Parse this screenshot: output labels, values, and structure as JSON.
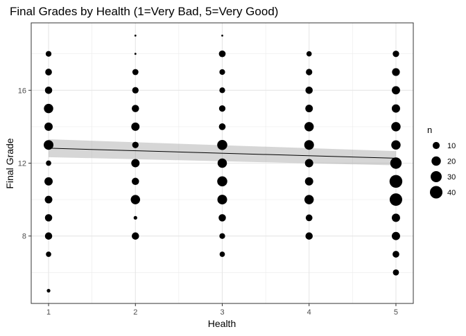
{
  "chart_data": {
    "type": "scatter",
    "title": "Final Grades by Health (1=Very Bad, 5=Very Good)",
    "xlabel": "Health",
    "ylabel": "Final Grade",
    "x_ticks": [
      1,
      2,
      3,
      4,
      5
    ],
    "y_ticks": [
      8,
      12,
      16
    ],
    "xlim": [
      0.8,
      5.2
    ],
    "ylim": [
      4.3,
      19.7
    ],
    "grid": true,
    "legend_position": "right",
    "legend": {
      "title": "n",
      "entries": [
        10,
        20,
        30,
        40
      ]
    },
    "size_range": [
      1,
      45
    ],
    "points": [
      {
        "x": 1,
        "y": 18,
        "n": 6
      },
      {
        "x": 1,
        "y": 17,
        "n": 9
      },
      {
        "x": 1,
        "y": 16,
        "n": 11
      },
      {
        "x": 1,
        "y": 15,
        "n": 20
      },
      {
        "x": 1,
        "y": 14,
        "n": 15
      },
      {
        "x": 1,
        "y": 13,
        "n": 22
      },
      {
        "x": 1,
        "y": 12,
        "n": 5
      },
      {
        "x": 1,
        "y": 11,
        "n": 15
      },
      {
        "x": 1,
        "y": 10,
        "n": 12
      },
      {
        "x": 1,
        "y": 9,
        "n": 11
      },
      {
        "x": 1,
        "y": 8,
        "n": 11
      },
      {
        "x": 1,
        "y": 7,
        "n": 5
      },
      {
        "x": 1,
        "y": 5,
        "n": 2
      },
      {
        "x": 2,
        "y": 19,
        "n": 1
      },
      {
        "x": 2,
        "y": 18,
        "n": 1
      },
      {
        "x": 2,
        "y": 17,
        "n": 7
      },
      {
        "x": 2,
        "y": 16,
        "n": 8
      },
      {
        "x": 2,
        "y": 15,
        "n": 11
      },
      {
        "x": 2,
        "y": 14,
        "n": 15
      },
      {
        "x": 2,
        "y": 13,
        "n": 8
      },
      {
        "x": 2,
        "y": 12,
        "n": 15
      },
      {
        "x": 2,
        "y": 11,
        "n": 11
      },
      {
        "x": 2,
        "y": 10,
        "n": 20
      },
      {
        "x": 2,
        "y": 9,
        "n": 2
      },
      {
        "x": 2,
        "y": 8,
        "n": 11
      },
      {
        "x": 3,
        "y": 19,
        "n": 1
      },
      {
        "x": 3,
        "y": 18,
        "n": 9
      },
      {
        "x": 3,
        "y": 17,
        "n": 6
      },
      {
        "x": 3,
        "y": 16,
        "n": 6
      },
      {
        "x": 3,
        "y": 15,
        "n": 8
      },
      {
        "x": 3,
        "y": 14,
        "n": 9
      },
      {
        "x": 3,
        "y": 13,
        "n": 24
      },
      {
        "x": 3,
        "y": 12,
        "n": 20
      },
      {
        "x": 3,
        "y": 11,
        "n": 24
      },
      {
        "x": 3,
        "y": 10,
        "n": 22
      },
      {
        "x": 3,
        "y": 9,
        "n": 11
      },
      {
        "x": 3,
        "y": 8,
        "n": 6
      },
      {
        "x": 3,
        "y": 7,
        "n": 5
      },
      {
        "x": 4,
        "y": 18,
        "n": 5
      },
      {
        "x": 4,
        "y": 17,
        "n": 8
      },
      {
        "x": 4,
        "y": 16,
        "n": 11
      },
      {
        "x": 4,
        "y": 15,
        "n": 12
      },
      {
        "x": 4,
        "y": 14,
        "n": 20
      },
      {
        "x": 4,
        "y": 13,
        "n": 22
      },
      {
        "x": 4,
        "y": 12,
        "n": 15
      },
      {
        "x": 4,
        "y": 11,
        "n": 15
      },
      {
        "x": 4,
        "y": 10,
        "n": 20
      },
      {
        "x": 4,
        "y": 9,
        "n": 9
      },
      {
        "x": 4,
        "y": 8,
        "n": 11
      },
      {
        "x": 5,
        "y": 18,
        "n": 8
      },
      {
        "x": 5,
        "y": 17,
        "n": 13
      },
      {
        "x": 5,
        "y": 16,
        "n": 15
      },
      {
        "x": 5,
        "y": 15,
        "n": 15
      },
      {
        "x": 5,
        "y": 14,
        "n": 20
      },
      {
        "x": 5,
        "y": 13,
        "n": 20
      },
      {
        "x": 5,
        "y": 12,
        "n": 32
      },
      {
        "x": 5,
        "y": 11,
        "n": 42
      },
      {
        "x": 5,
        "y": 10,
        "n": 40
      },
      {
        "x": 5,
        "y": 9,
        "n": 15
      },
      {
        "x": 5,
        "y": 8,
        "n": 15
      },
      {
        "x": 5,
        "y": 7,
        "n": 9
      },
      {
        "x": 5,
        "y": 6,
        "n": 7
      }
    ],
    "trend_line": {
      "x": [
        1,
        5
      ],
      "y": [
        12.82,
        12.27
      ],
      "ci_lower": [
        12.33,
        11.88
      ],
      "ci_upper": [
        13.31,
        12.66
      ]
    }
  }
}
